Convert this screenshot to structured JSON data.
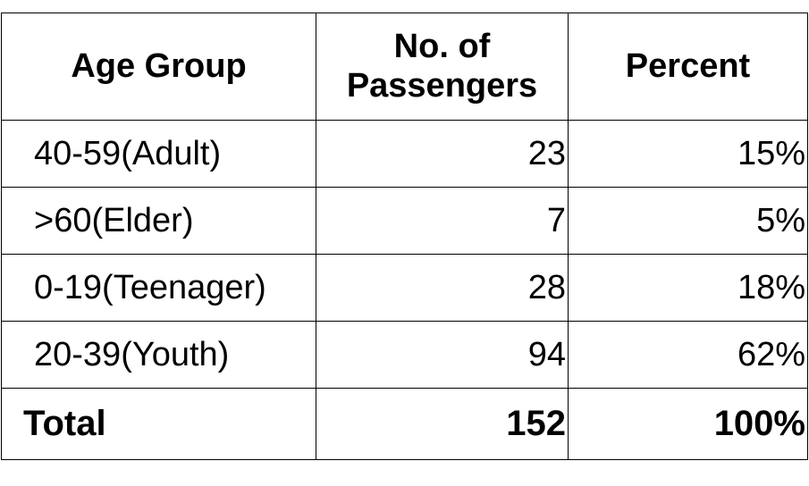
{
  "chart_data": {
    "type": "table",
    "columns": [
      "Age Group",
      "No. of Passengers",
      "Percent"
    ],
    "header": {
      "age_group": "Age Group",
      "passengers_line1": "No. of",
      "passengers_line2": "Passengers",
      "percent": "Percent"
    },
    "rows": [
      {
        "age_group": "40-59(Adult)",
        "passengers": "23",
        "percent": "15%"
      },
      {
        "age_group": ">60(Elder)",
        "passengers": "7",
        "percent": "5%"
      },
      {
        "age_group": "0-19(Teenager)",
        "passengers": "28",
        "percent": "18%"
      },
      {
        "age_group": "20-39(Youth)",
        "passengers": "94",
        "percent": "62%"
      }
    ],
    "total": {
      "label": "Total",
      "passengers": "152",
      "percent": "100%"
    }
  }
}
